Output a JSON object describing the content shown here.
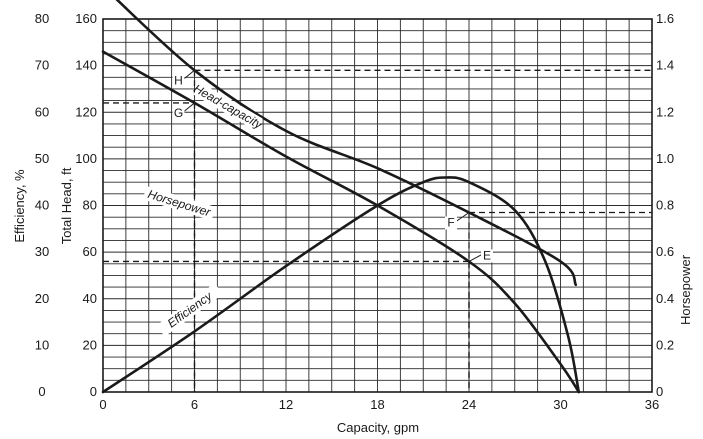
{
  "chart_data": {
    "type": "line",
    "xlabel": "Capacity, gpm",
    "xlim": [
      0,
      36
    ],
    "x_ticks": [
      "0",
      "6",
      "12",
      "18",
      "24",
      "30",
      "36"
    ],
    "axes": {
      "efficiency": {
        "label": "Efficiency, %",
        "ylim": [
          0,
          80
        ],
        "ticks": [
          "0",
          "10",
          "20",
          "30",
          "40",
          "50",
          "60",
          "70",
          "80"
        ]
      },
      "head": {
        "label": "Total Head, ft",
        "ylim": [
          0,
          160
        ],
        "ticks": [
          "0",
          "20",
          "40",
          "60",
          "80",
          "100",
          "120",
          "140",
          "160"
        ]
      },
      "horsepower": {
        "label": "Horsepower",
        "ylim": [
          0,
          1.6
        ],
        "ticks": [
          "0",
          "0.2",
          "0.4",
          "0.6",
          "0.8",
          "1.0",
          "1.2",
          "1.4",
          "1.6"
        ]
      }
    },
    "grid": true,
    "series": [
      {
        "name": "Head-capacity",
        "axis": "head",
        "x": [
          0,
          6,
          12,
          18,
          24,
          27,
          30,
          31.2
        ],
        "y": [
          146,
          124,
          101,
          80,
          56,
          38,
          12,
          0
        ]
      },
      {
        "name": "Horsepower",
        "axis": "horsepower",
        "x": [
          0,
          6,
          12,
          18,
          24,
          30,
          31
        ],
        "y": [
          1.74,
          1.38,
          1.12,
          0.96,
          0.77,
          0.56,
          0.46
        ]
      },
      {
        "name": "Efficiency",
        "axis": "efficiency",
        "x": [
          0,
          6,
          12,
          18,
          21,
          22.5,
          24,
          27,
          29,
          30.5,
          31.2
        ],
        "y": [
          0,
          13,
          27,
          40,
          45,
          46,
          45,
          39,
          28,
          12,
          0
        ]
      }
    ],
    "reference_points": [
      {
        "label": "G",
        "x": 6,
        "head": 124
      },
      {
        "label": "H",
        "x": 6,
        "horsepower": 1.38
      },
      {
        "label": "E",
        "x": 24,
        "head": 56
      },
      {
        "label": "F",
        "x": 24,
        "horsepower": 0.77
      }
    ]
  }
}
